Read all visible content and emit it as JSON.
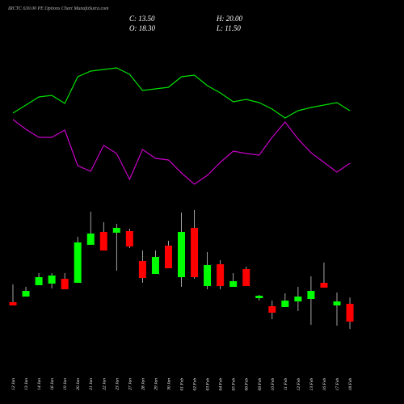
{
  "chart_data": [
    {
      "type": "line",
      "title": "IRCTC 630.00 PE Options Chart MunafaSutra.com",
      "ylim": [
        0,
        200
      ],
      "series": [
        {
          "color": "#00e000",
          "values": [
            120,
            130,
            140,
            142,
            132,
            165,
            172,
            174,
            176,
            168,
            148,
            150,
            152,
            165,
            167,
            154,
            145,
            134,
            137,
            133,
            125,
            114,
            123,
            127,
            130,
            133,
            123
          ]
        },
        {
          "color": "#c800c8",
          "values": [
            112,
            100,
            90,
            90,
            99,
            55,
            48,
            80,
            70,
            38,
            75,
            64,
            62,
            46,
            32,
            43,
            59,
            73,
            70,
            68,
            90,
            109,
            88,
            71,
            59,
            47,
            58
          ]
        }
      ]
    },
    {
      "type": "candlestick",
      "labels": [
        "C: 13.50",
        "H: 20.00",
        "O: 18.30",
        "L: 11.50"
      ],
      "categories": [
        "12 Jan",
        "13 Jan",
        "14 Jan",
        "16 Jan",
        "19 Jan",
        "20 Jan",
        "21 Jan",
        "22 Jan",
        "23 Jan",
        "27 Jan",
        "28 Jan",
        "29 Jan",
        "30 Jan",
        "01 Feb",
        "02 Feb",
        "03 Feb",
        "04 Feb",
        "05 Feb",
        "06 Feb",
        "09 Feb",
        "10 Feb",
        "11 Feb",
        "12 Feb",
        "13 Feb",
        "16 Feb",
        "17 Feb",
        "18 Feb"
      ],
      "open": [
        18.74,
        20.26,
        23.32,
        23.76,
        25.06,
        23.97,
        34.23,
        37.72,
        37.5,
        37.94,
        29.86,
        26.37,
        34.01,
        25.5,
        38.81,
        23.1,
        28.99,
        22.88,
        27.68,
        19.83,
        17.65,
        17.43,
        18.95,
        19.61,
        23.97,
        17.86,
        18.3
      ],
      "close": [
        17.86,
        21.79,
        25.5,
        25.94,
        22.23,
        34.88,
        37.28,
        32.7,
        38.81,
        33.79,
        25.28,
        30.96,
        27.9,
        37.72,
        25.5,
        28.77,
        23.1,
        24.41,
        23.1,
        20.48,
        15.9,
        19.17,
        20.26,
        21.79,
        22.66,
        18.95,
        13.5
      ],
      "high": [
        23.54,
        22.88,
        26.59,
        26.59,
        26.59,
        36.41,
        43.17,
        40.34,
        39.9,
        38.59,
        32.7,
        32.7,
        35.32,
        42.96,
        43.61,
        32.26,
        30.08,
        26.59,
        28.34,
        20.7,
        19.17,
        21.14,
        22.88,
        25.72,
        29.43,
        21.35,
        20.0
      ],
      "low": [
        17.86,
        20.26,
        23.32,
        22.45,
        22.23,
        23.97,
        34.23,
        32.7,
        27.25,
        33.36,
        23.97,
        26.37,
        27.9,
        22.88,
        25.06,
        22.23,
        22.23,
        22.88,
        23.1,
        19.17,
        14.15,
        17.43,
        16.34,
        12.63,
        22.66,
        12.41,
        11.5
      ],
      "ylim": [
        8.7,
        45.8
      ],
      "up_color": "#00ff00",
      "down_color": "#ff0000"
    }
  ]
}
